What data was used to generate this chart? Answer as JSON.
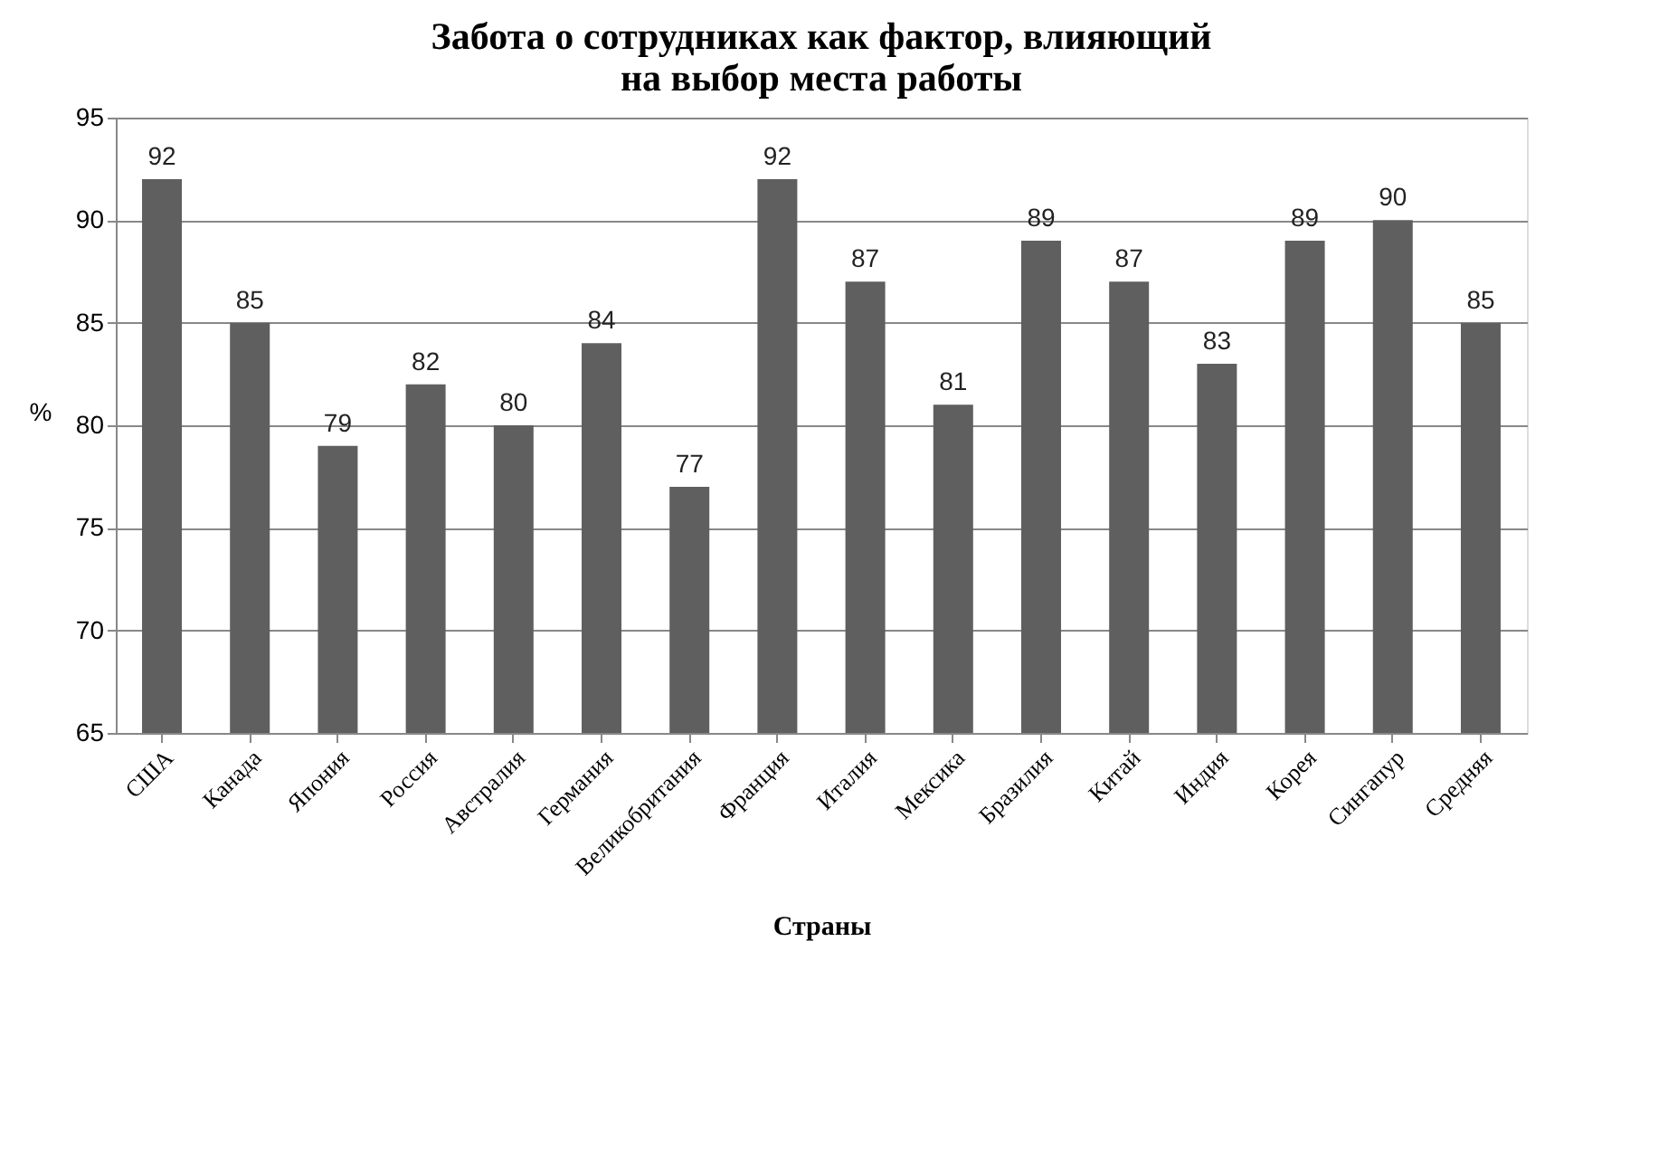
{
  "chart_data": {
    "type": "bar",
    "title": "Забота о сотрудниках как фактор, влияющий на выбор места работы",
    "xlabel": "Страны",
    "ylabel": "%",
    "categories": [
      "США",
      "Канада",
      "Япония",
      "Россия",
      "Австралия",
      "Германия",
      "Великобритания",
      "Франция",
      "Италия",
      "Мексика",
      "Бразилия",
      "Китай",
      "Индия",
      "Корея",
      "Сингапур",
      "Средняя"
    ],
    "values": [
      92,
      85,
      79,
      82,
      80,
      84,
      77,
      92,
      87,
      81,
      89,
      87,
      83,
      89,
      90,
      85
    ],
    "color": "#5f5f5f",
    "ylim": [
      65,
      95
    ],
    "yticks": [
      65,
      70,
      75,
      80,
      85,
      90,
      95
    ],
    "grid": "y",
    "data_labels": true
  }
}
